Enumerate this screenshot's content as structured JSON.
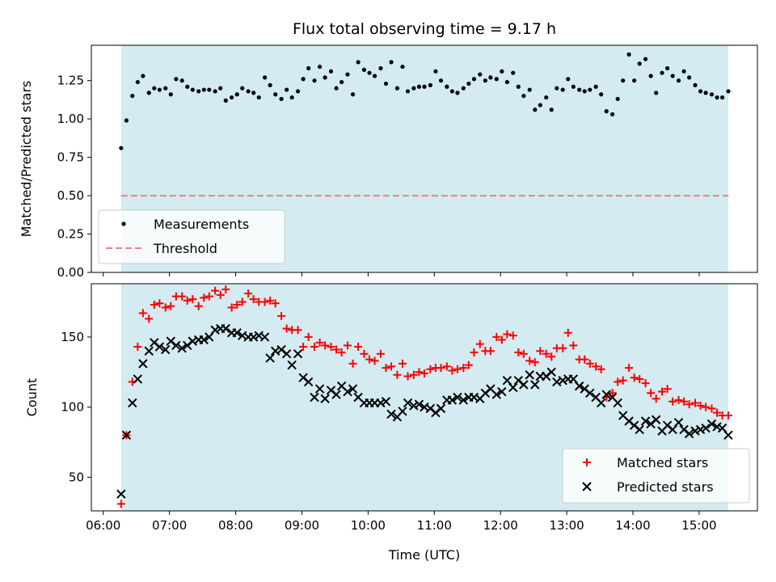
{
  "title": "Flux total observing time = 9.17 h",
  "chart_data": [
    {
      "type": "scatter",
      "ylabel": "Matched/Predicted stars",
      "ylim": [
        0,
        1.48
      ],
      "yticks": [
        "0.00",
        "0.25",
        "0.50",
        "0.75",
        "1.00",
        "1.25"
      ],
      "yticks_values": [
        0,
        0.25,
        0.5,
        0.75,
        1.0,
        1.25
      ],
      "threshold": 0.5,
      "shade_range_hours": [
        6.27,
        15.44
      ],
      "shade_color": "#d3ebf1",
      "threshold_color": "#f07f7f",
      "legend": {
        "position": "lower-left",
        "entries": [
          "Measurements",
          "Threshold"
        ]
      },
      "series": [
        {
          "name": "Measurements",
          "color": "#000000",
          "x": [
            6.27,
            6.35,
            6.44,
            6.52,
            6.6,
            6.69,
            6.77,
            6.85,
            6.94,
            7.02,
            7.1,
            7.19,
            7.27,
            7.35,
            7.44,
            7.52,
            7.6,
            7.69,
            7.77,
            7.85,
            7.94,
            8.02,
            8.1,
            8.19,
            8.27,
            8.35,
            8.44,
            8.52,
            8.6,
            8.69,
            8.77,
            8.85,
            8.94,
            9.02,
            9.1,
            9.19,
            9.27,
            9.35,
            9.44,
            9.52,
            9.6,
            9.69,
            9.77,
            9.85,
            9.94,
            10.02,
            10.1,
            10.19,
            10.27,
            10.35,
            10.44,
            10.52,
            10.6,
            10.69,
            10.77,
            10.85,
            10.94,
            11.02,
            11.1,
            11.19,
            11.27,
            11.35,
            11.44,
            11.52,
            11.6,
            11.69,
            11.77,
            11.85,
            11.94,
            12.02,
            12.1,
            12.19,
            12.27,
            12.35,
            12.44,
            12.52,
            12.6,
            12.69,
            12.77,
            12.85,
            12.94,
            13.02,
            13.1,
            13.19,
            13.27,
            13.35,
            13.44,
            13.52,
            13.6,
            13.69,
            13.77,
            13.85,
            13.94,
            14.02,
            14.1,
            14.19,
            14.27,
            14.35,
            14.44,
            14.52,
            14.6,
            14.69,
            14.77,
            14.85,
            14.94,
            15.02,
            15.1,
            15.19,
            15.27,
            15.35,
            15.44
          ],
          "y": [
            0.81,
            0.99,
            1.15,
            1.24,
            1.28,
            1.17,
            1.2,
            1.19,
            1.2,
            1.16,
            1.26,
            1.25,
            1.21,
            1.19,
            1.18,
            1.19,
            1.19,
            1.18,
            1.2,
            1.12,
            1.14,
            1.16,
            1.2,
            1.18,
            1.17,
            1.14,
            1.27,
            1.22,
            1.16,
            1.13,
            1.19,
            1.14,
            1.18,
            1.26,
            1.33,
            1.25,
            1.34,
            1.27,
            1.31,
            1.2,
            1.24,
            1.29,
            1.16,
            1.37,
            1.32,
            1.3,
            1.28,
            1.33,
            1.23,
            1.37,
            1.2,
            1.34,
            1.18,
            1.2,
            1.21,
            1.21,
            1.22,
            1.31,
            1.25,
            1.21,
            1.18,
            1.17,
            1.2,
            1.23,
            1.26,
            1.29,
            1.25,
            1.27,
            1.26,
            1.31,
            1.24,
            1.3,
            1.21,
            1.15,
            1.19,
            1.06,
            1.09,
            1.14,
            1.06,
            1.2,
            1.19,
            1.26,
            1.21,
            1.19,
            1.18,
            1.19,
            1.21,
            1.16,
            1.05,
            1.03,
            1.13,
            1.25,
            1.42,
            1.25,
            1.36,
            1.39,
            1.28,
            1.17,
            1.3,
            1.33,
            1.28,
            1.25,
            1.31,
            1.27,
            1.22,
            1.18,
            1.17,
            1.16,
            1.14,
            1.14,
            1.18
          ]
        }
      ]
    },
    {
      "type": "scatter",
      "xlabel": "Time (UTC)",
      "ylabel": "Count",
      "ylim": [
        26,
        188
      ],
      "yticks": [
        "50",
        "100",
        "150"
      ],
      "yticks_values": [
        50,
        100,
        150
      ],
      "xlim_hours": [
        5.82,
        15.88
      ],
      "xticks": [
        "06:00",
        "07:00",
        "08:00",
        "09:00",
        "10:00",
        "11:00",
        "12:00",
        "13:00",
        "14:00",
        "15:00"
      ],
      "xticks_values": [
        6,
        7,
        8,
        9,
        10,
        11,
        12,
        13,
        14,
        15
      ],
      "legend": {
        "position": "lower-right",
        "entries": [
          "Matched stars",
          "Predicted stars"
        ]
      },
      "series": [
        {
          "name": "Matched stars",
          "marker": "+",
          "color": "#ff0000",
          "x": [
            6.27,
            6.35,
            6.44,
            6.52,
            6.6,
            6.69,
            6.77,
            6.85,
            6.94,
            7.02,
            7.1,
            7.19,
            7.27,
            7.35,
            7.44,
            7.52,
            7.6,
            7.69,
            7.77,
            7.85,
            7.94,
            8.02,
            8.1,
            8.19,
            8.27,
            8.35,
            8.44,
            8.52,
            8.6,
            8.69,
            8.77,
            8.85,
            8.94,
            9.02,
            9.1,
            9.19,
            9.27,
            9.35,
            9.44,
            9.52,
            9.6,
            9.69,
            9.77,
            9.85,
            9.94,
            10.02,
            10.1,
            10.19,
            10.27,
            10.35,
            10.44,
            10.52,
            10.6,
            10.69,
            10.77,
            10.85,
            10.94,
            11.02,
            11.1,
            11.19,
            11.27,
            11.35,
            11.44,
            11.52,
            11.6,
            11.69,
            11.77,
            11.85,
            11.94,
            12.02,
            12.1,
            12.19,
            12.27,
            12.35,
            12.44,
            12.52,
            12.6,
            12.69,
            12.77,
            12.85,
            12.94,
            13.02,
            13.1,
            13.19,
            13.27,
            13.35,
            13.44,
            13.52,
            13.6,
            13.69,
            13.77,
            13.85,
            13.94,
            14.02,
            14.1,
            14.19,
            14.27,
            14.35,
            14.44,
            14.52,
            14.6,
            14.69,
            14.77,
            14.85,
            14.94,
            15.02,
            15.1,
            15.19,
            15.27,
            15.35,
            15.44
          ],
          "y": [
            31,
            80,
            118,
            143,
            167,
            163,
            173,
            174,
            171,
            172,
            179,
            179,
            176,
            177,
            172,
            178,
            179,
            183,
            180,
            184,
            171,
            173,
            175,
            181,
            177,
            175,
            175,
            176,
            174,
            165,
            156,
            155,
            155,
            143,
            150,
            143,
            146,
            144,
            143,
            141,
            139,
            144,
            131,
            143,
            138,
            134,
            133,
            138,
            128,
            129,
            123,
            131,
            122,
            123,
            125,
            124,
            127,
            128,
            128,
            129,
            126,
            127,
            128,
            130,
            139,
            145,
            140,
            140,
            150,
            148,
            152,
            151,
            139,
            138,
            133,
            132,
            140,
            138,
            136,
            142,
            142,
            153,
            144,
            134,
            134,
            131,
            129,
            127,
            107,
            110,
            118,
            119,
            128,
            121,
            120,
            117,
            110,
            106,
            111,
            113,
            104,
            105,
            104,
            102,
            103,
            101,
            100,
            99,
            96,
            94,
            94
          ]
        },
        {
          "name": "Predicted stars",
          "marker": "x",
          "color": "#000000",
          "x": [
            6.27,
            6.35,
            6.44,
            6.52,
            6.6,
            6.69,
            6.77,
            6.85,
            6.94,
            7.02,
            7.1,
            7.19,
            7.27,
            7.35,
            7.44,
            7.52,
            7.6,
            7.69,
            7.77,
            7.85,
            7.94,
            8.02,
            8.1,
            8.19,
            8.27,
            8.35,
            8.44,
            8.52,
            8.6,
            8.69,
            8.77,
            8.85,
            8.94,
            9.02,
            9.1,
            9.19,
            9.27,
            9.35,
            9.44,
            9.52,
            9.6,
            9.69,
            9.77,
            9.85,
            9.94,
            10.02,
            10.1,
            10.19,
            10.27,
            10.35,
            10.44,
            10.52,
            10.6,
            10.69,
            10.77,
            10.85,
            10.94,
            11.02,
            11.1,
            11.19,
            11.27,
            11.35,
            11.44,
            11.52,
            11.6,
            11.69,
            11.77,
            11.85,
            11.94,
            12.02,
            12.1,
            12.19,
            12.27,
            12.35,
            12.44,
            12.52,
            12.6,
            12.69,
            12.77,
            12.85,
            12.94,
            13.02,
            13.1,
            13.19,
            13.27,
            13.35,
            13.44,
            13.52,
            13.6,
            13.69,
            13.77,
            13.85,
            13.94,
            14.02,
            14.1,
            14.19,
            14.27,
            14.35,
            14.44,
            14.52,
            14.6,
            14.69,
            14.77,
            14.85,
            14.94,
            15.02,
            15.1,
            15.19,
            15.27,
            15.35,
            15.44
          ],
          "y": [
            38,
            80,
            103,
            120,
            131,
            140,
            146,
            143,
            141,
            147,
            144,
            142,
            144,
            147,
            148,
            148,
            150,
            155,
            156,
            156,
            153,
            153,
            151,
            150,
            150,
            151,
            150,
            135,
            140,
            141,
            138,
            130,
            138,
            121,
            118,
            107,
            113,
            106,
            112,
            109,
            115,
            111,
            113,
            107,
            103,
            103,
            103,
            103,
            104,
            95,
            93,
            97,
            103,
            101,
            102,
            100,
            99,
            96,
            99,
            105,
            105,
            107,
            105,
            107,
            107,
            106,
            110,
            113,
            109,
            111,
            119,
            114,
            119,
            116,
            123,
            116,
            122,
            122,
            125,
            118,
            119,
            120,
            120,
            115,
            113,
            110,
            107,
            103,
            109,
            107,
            103,
            94,
            90,
            87,
            84,
            90,
            88,
            91,
            83,
            87,
            84,
            89,
            84,
            81,
            83,
            84,
            85,
            88,
            86,
            85,
            80
          ]
        }
      ]
    }
  ]
}
